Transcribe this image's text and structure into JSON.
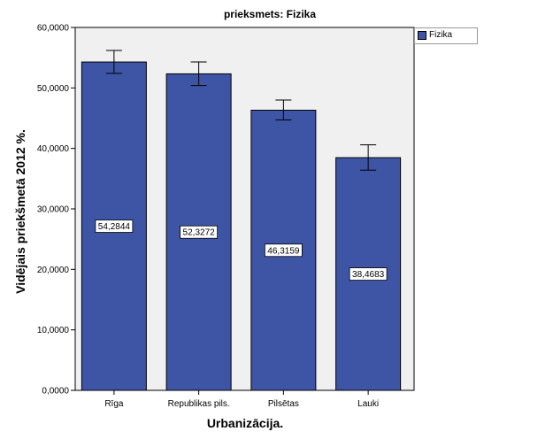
{
  "chart_data": {
    "type": "bar",
    "title": "prieksmets: Fizika",
    "xlabel": "Urbanizācija.",
    "ylabel": "Vidējais priekšmetā 2012 %.",
    "categories": [
      "Rīga",
      "Republikas pils.",
      "Pilsētas",
      "Lauki"
    ],
    "series": [
      {
        "name": "Fizika",
        "values": [
          54.2844,
          52.3272,
          46.3159,
          38.4683
        ],
        "value_labels": [
          "54,2844",
          "52,3272",
          "46,3159",
          "38,4683"
        ],
        "error_low": [
          52.4,
          50.4,
          44.7,
          36.4
        ],
        "error_high": [
          56.2,
          54.3,
          48.0,
          40.6
        ]
      }
    ],
    "ylim": [
      0,
      60
    ],
    "yticks": [
      0,
      10,
      20,
      30,
      40,
      50,
      60
    ],
    "ytick_labels": [
      "0,0000",
      "10,0000",
      "20,0000",
      "30,0000",
      "40,0000",
      "50,0000",
      "60,0000"
    ],
    "grid": false,
    "legend_position": "top-right",
    "colors": {
      "bar": "#3e55a6",
      "plot_background": "#f0f0f0"
    }
  }
}
